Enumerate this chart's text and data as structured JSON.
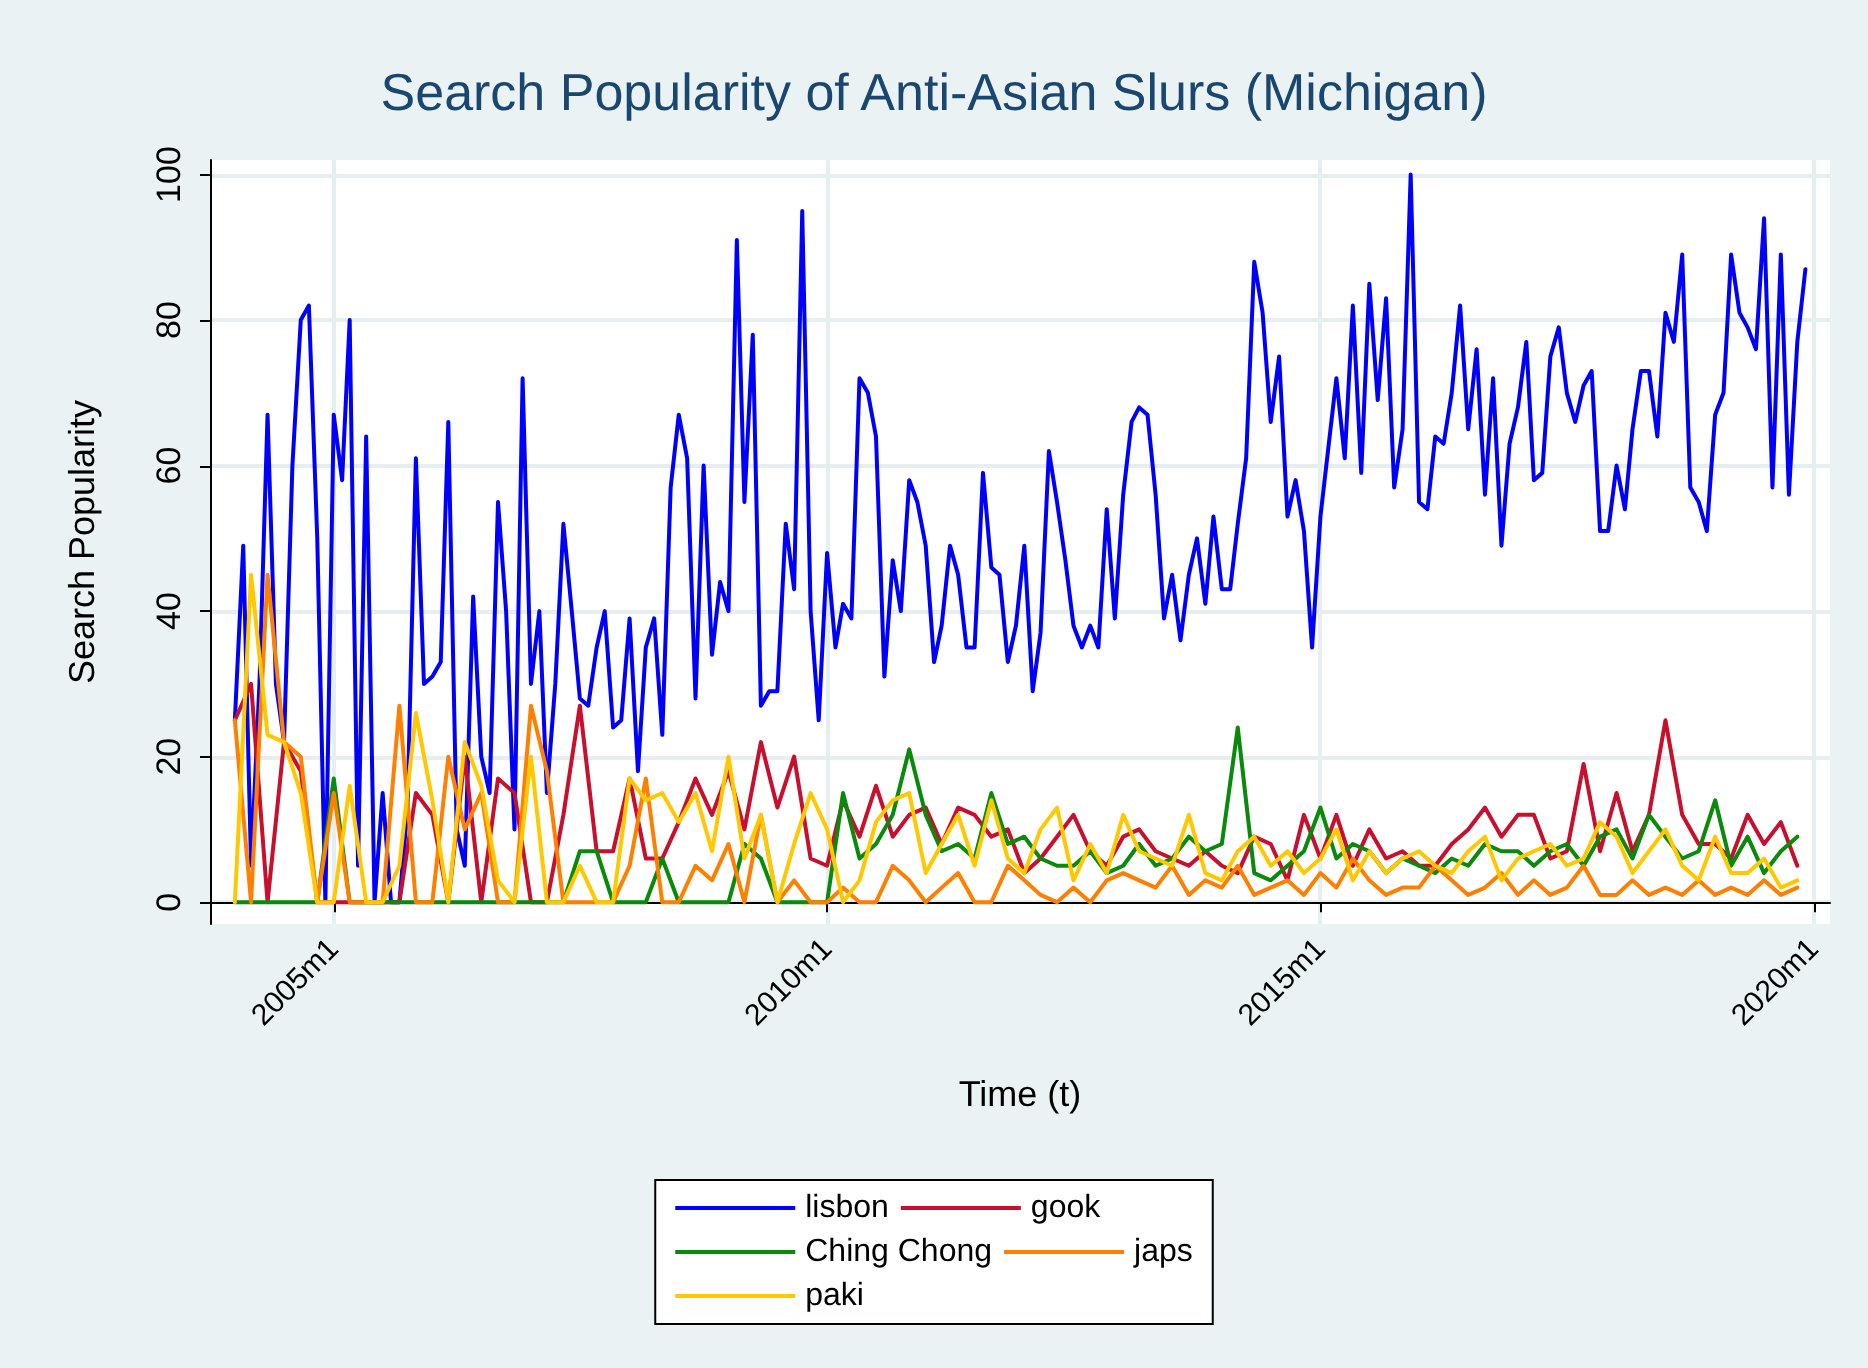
{
  "chart_data": {
    "type": "line",
    "title": "Search Popularity of Anti-Asian Slurs (Michigan)",
    "xlabel": "Time (t)",
    "ylabel": "Search Popularity",
    "xlim": [
      "2003-10",
      "2020-03"
    ],
    "xticks": [
      {
        "value": "2005-01",
        "label": "2005m1"
      },
      {
        "value": "2010-01",
        "label": "2010m1"
      },
      {
        "value": "2015-01",
        "label": "2015m1"
      },
      {
        "value": "2020-01",
        "label": "2020m1"
      }
    ],
    "ylim": [
      -3,
      102
    ],
    "yticks": [
      0,
      20,
      40,
      60,
      80,
      100
    ],
    "grid": true,
    "legend": "bottom",
    "marker": "none",
    "line_style": "solid",
    "x": [
      "2004-01",
      "2004-02",
      "2004-03",
      "2004-04",
      "2004-05",
      "2004-06",
      "2004-07",
      "2004-08",
      "2004-09",
      "2004-10",
      "2004-11",
      "2004-12",
      "2005-01",
      "2005-02",
      "2005-03",
      "2005-04",
      "2005-05",
      "2005-06",
      "2005-07",
      "2005-08",
      "2005-09",
      "2005-10",
      "2005-11",
      "2005-12",
      "2006-01",
      "2006-02",
      "2006-03",
      "2006-04",
      "2006-05",
      "2006-06",
      "2006-07",
      "2006-08",
      "2006-09",
      "2006-10",
      "2006-11",
      "2006-12",
      "2007-01",
      "2007-02",
      "2007-03",
      "2007-04",
      "2007-05",
      "2007-06",
      "2007-07",
      "2007-08",
      "2007-09",
      "2007-10",
      "2007-11",
      "2007-12",
      "2008-01",
      "2008-02",
      "2008-03",
      "2008-04",
      "2008-05",
      "2008-06",
      "2008-07",
      "2008-08",
      "2008-09",
      "2008-10",
      "2008-11",
      "2008-12",
      "2009-01",
      "2009-02",
      "2009-03",
      "2009-04",
      "2009-05",
      "2009-06",
      "2009-07",
      "2009-08",
      "2009-09",
      "2009-10",
      "2009-11",
      "2009-12",
      "2010-01",
      "2010-02",
      "2010-03",
      "2010-04",
      "2010-05",
      "2010-06",
      "2010-07",
      "2010-08",
      "2010-09",
      "2010-10",
      "2010-11",
      "2010-12",
      "2011-01",
      "2011-02",
      "2011-03",
      "2011-04",
      "2011-05",
      "2011-06",
      "2011-07",
      "2011-08",
      "2011-09",
      "2011-10",
      "2011-11",
      "2011-12",
      "2012-01",
      "2012-02",
      "2012-03",
      "2012-04",
      "2012-05",
      "2012-06",
      "2012-07",
      "2012-08",
      "2012-09",
      "2012-10",
      "2012-11",
      "2012-12",
      "2013-01",
      "2013-02",
      "2013-03",
      "2013-04",
      "2013-05",
      "2013-06",
      "2013-07",
      "2013-08",
      "2013-09",
      "2013-10",
      "2013-11",
      "2013-12",
      "2014-01",
      "2014-02",
      "2014-03",
      "2014-04",
      "2014-05",
      "2014-06",
      "2014-07",
      "2014-08",
      "2014-09",
      "2014-10",
      "2014-11",
      "2014-12",
      "2015-01",
      "2015-02",
      "2015-03",
      "2015-04",
      "2015-05",
      "2015-06",
      "2015-07",
      "2015-08",
      "2015-09",
      "2015-10",
      "2015-11",
      "2015-12",
      "2016-01",
      "2016-02",
      "2016-03",
      "2016-04",
      "2016-05",
      "2016-06",
      "2016-07",
      "2016-08",
      "2016-09",
      "2016-10",
      "2016-11",
      "2016-12",
      "2017-01",
      "2017-02",
      "2017-03",
      "2017-04",
      "2017-05",
      "2017-06",
      "2017-07",
      "2017-08",
      "2017-09",
      "2017-10",
      "2017-11",
      "2017-12",
      "2018-01",
      "2018-02",
      "2018-03",
      "2018-04",
      "2018-05",
      "2018-06",
      "2018-07",
      "2018-08",
      "2018-09",
      "2018-10",
      "2018-11",
      "2018-12",
      "2019-01",
      "2019-02",
      "2019-03",
      "2019-04",
      "2019-05",
      "2019-06",
      "2019-07",
      "2019-08",
      "2019-09",
      "2019-10",
      "2019-11",
      "2019-12"
    ],
    "series": [
      {
        "name": "lisbon",
        "color": "#0000ff",
        "values": [
          25,
          49,
          5,
          30,
          67,
          30,
          22,
          60,
          80,
          82,
          50,
          0,
          67,
          58,
          80,
          5,
          64,
          0,
          15,
          0,
          0,
          13,
          61,
          30,
          31,
          33,
          66,
          10,
          5,
          42,
          20,
          15,
          55,
          40,
          10,
          72,
          30,
          40,
          15,
          30,
          52,
          40,
          28,
          27,
          35,
          40,
          24,
          25,
          39,
          18,
          35,
          39,
          23,
          57,
          67,
          61,
          28,
          60,
          34,
          44,
          40,
          91,
          55,
          78,
          27,
          29,
          29,
          52,
          43,
          95,
          40,
          25,
          48,
          35,
          41,
          39,
          72,
          70,
          64,
          31,
          47,
          40,
          58,
          55,
          49,
          33,
          38,
          49,
          45,
          35,
          35,
          59,
          46,
          45,
          33,
          38,
          49,
          29,
          37,
          62,
          55,
          47,
          38,
          35,
          38,
          35,
          54,
          39,
          56,
          66,
          68,
          67,
          56,
          39,
          45,
          36,
          45,
          50,
          41,
          53,
          43,
          43,
          52,
          61,
          88,
          81,
          66,
          75,
          53,
          58,
          51,
          35,
          53,
          63,
          72,
          61,
          82,
          59,
          85,
          69,
          83,
          57,
          65,
          100,
          55,
          54,
          64,
          63,
          70,
          82,
          65,
          76,
          56,
          72,
          49,
          63,
          68,
          77,
          58,
          59,
          75,
          79,
          70,
          66,
          71,
          73,
          51,
          51,
          60,
          54,
          65,
          73,
          73,
          64,
          81,
          77,
          89,
          57,
          55,
          51,
          67,
          70,
          89,
          81,
          79,
          76,
          94,
          57,
          89,
          56,
          77,
          87
        ]
      },
      {
        "name": "gook",
        "color": "#c8102e",
        "x": [
          "2004-01",
          "2004-03",
          "2004-05",
          "2004-07",
          "2004-09",
          "2004-11",
          "2005-01",
          "2005-03",
          "2005-05",
          "2005-07",
          "2005-09",
          "2005-11",
          "2006-01",
          "2006-03",
          "2006-05",
          "2006-07",
          "2006-09",
          "2006-11",
          "2007-01",
          "2007-03",
          "2007-05",
          "2007-07",
          "2007-09",
          "2007-11",
          "2008-01",
          "2008-03",
          "2008-05",
          "2008-07",
          "2008-09",
          "2008-11",
          "2009-01",
          "2009-03",
          "2009-05",
          "2009-07",
          "2009-09",
          "2009-11",
          "2010-01",
          "2010-03",
          "2010-05",
          "2010-07",
          "2010-09",
          "2010-11",
          "2011-01",
          "2011-03",
          "2011-05",
          "2011-07",
          "2011-09",
          "2011-11",
          "2012-01",
          "2012-03",
          "2012-05",
          "2012-07",
          "2012-09",
          "2012-11",
          "2013-01",
          "2013-03",
          "2013-05",
          "2013-07",
          "2013-09",
          "2013-11",
          "2014-01",
          "2014-03",
          "2014-05",
          "2014-07",
          "2014-09",
          "2014-11",
          "2015-01",
          "2015-03",
          "2015-05",
          "2015-07",
          "2015-09",
          "2015-11",
          "2016-01",
          "2016-03",
          "2016-05",
          "2016-07",
          "2016-09",
          "2016-11",
          "2017-01",
          "2017-03",
          "2017-05",
          "2017-07",
          "2017-09",
          "2017-11",
          "2018-01",
          "2018-03",
          "2018-05",
          "2018-07",
          "2018-09",
          "2018-11",
          "2019-01",
          "2019-03",
          "2019-05",
          "2019-07",
          "2019-09",
          "2019-11"
        ],
        "values": [
          25,
          30,
          0,
          22,
          18,
          0,
          0,
          0,
          0,
          0,
          0,
          15,
          12,
          0,
          20,
          0,
          17,
          15,
          0,
          0,
          12,
          27,
          7,
          7,
          17,
          6,
          6,
          11,
          17,
          12,
          18,
          10,
          22,
          13,
          20,
          6,
          5,
          14,
          9,
          16,
          9,
          12,
          13,
          8,
          13,
          12,
          9,
          10,
          4,
          6,
          9,
          12,
          7,
          5,
          9,
          10,
          7,
          6,
          5,
          7,
          5,
          4,
          9,
          8,
          3,
          12,
          6,
          12,
          5,
          10,
          6,
          7,
          5,
          5,
          8,
          10,
          13,
          9,
          12,
          12,
          6,
          7,
          19,
          7,
          15,
          7,
          12,
          25,
          12,
          8,
          8,
          6,
          12,
          8,
          11,
          5
        ]
      },
      {
        "name": "Ching Chong",
        "color": "#0a8a0a",
        "x": [
          "2004-01",
          "2004-03",
          "2004-05",
          "2004-07",
          "2004-09",
          "2004-11",
          "2005-01",
          "2005-03",
          "2005-05",
          "2005-07",
          "2005-09",
          "2005-11",
          "2006-01",
          "2006-03",
          "2006-05",
          "2006-07",
          "2006-09",
          "2006-11",
          "2007-01",
          "2007-03",
          "2007-05",
          "2007-07",
          "2007-09",
          "2007-11",
          "2008-01",
          "2008-03",
          "2008-05",
          "2008-07",
          "2008-09",
          "2008-11",
          "2009-01",
          "2009-03",
          "2009-05",
          "2009-07",
          "2009-09",
          "2009-11",
          "2010-01",
          "2010-03",
          "2010-05",
          "2010-07",
          "2010-09",
          "2010-11",
          "2011-01",
          "2011-03",
          "2011-05",
          "2011-07",
          "2011-09",
          "2011-11",
          "2012-01",
          "2012-03",
          "2012-05",
          "2012-07",
          "2012-09",
          "2012-11",
          "2013-01",
          "2013-03",
          "2013-05",
          "2013-07",
          "2013-09",
          "2013-11",
          "2014-01",
          "2014-03",
          "2014-05",
          "2014-07",
          "2014-09",
          "2014-11",
          "2015-01",
          "2015-03",
          "2015-05",
          "2015-07",
          "2015-09",
          "2015-11",
          "2016-01",
          "2016-03",
          "2016-05",
          "2016-07",
          "2016-09",
          "2016-11",
          "2017-01",
          "2017-03",
          "2017-05",
          "2017-07",
          "2017-09",
          "2017-11",
          "2018-01",
          "2018-03",
          "2018-05",
          "2018-07",
          "2018-09",
          "2018-11",
          "2019-01",
          "2019-03",
          "2019-05",
          "2019-07",
          "2019-09",
          "2019-11"
        ],
        "values": [
          0,
          0,
          0,
          0,
          0,
          0,
          17,
          0,
          0,
          0,
          0,
          0,
          0,
          0,
          0,
          0,
          0,
          0,
          0,
          0,
          0,
          7,
          7,
          0,
          0,
          0,
          6,
          0,
          0,
          0,
          0,
          8,
          6,
          0,
          0,
          0,
          0,
          15,
          6,
          8,
          12,
          21,
          12,
          7,
          8,
          6,
          15,
          8,
          9,
          6,
          5,
          5,
          7,
          4,
          5,
          8,
          5,
          6,
          9,
          7,
          8,
          24,
          4,
          3,
          5,
          7,
          13,
          6,
          8,
          7,
          4,
          6,
          5,
          4,
          6,
          5,
          8,
          7,
          7,
          5,
          7,
          8,
          5,
          9,
          10,
          6,
          12,
          9,
          6,
          7,
          14,
          5,
          9,
          4,
          7,
          9
        ]
      },
      {
        "name": "japs",
        "color": "#ff8000",
        "x": [
          "2004-01",
          "2004-03",
          "2004-05",
          "2004-07",
          "2004-09",
          "2004-11",
          "2005-01",
          "2005-03",
          "2005-05",
          "2005-07",
          "2005-09",
          "2005-11",
          "2006-01",
          "2006-03",
          "2006-05",
          "2006-07",
          "2006-09",
          "2006-11",
          "2007-01",
          "2007-03",
          "2007-05",
          "2007-07",
          "2007-09",
          "2007-11",
          "2008-01",
          "2008-03",
          "2008-05",
          "2008-07",
          "2008-09",
          "2008-11",
          "2009-01",
          "2009-03",
          "2009-05",
          "2009-07",
          "2009-09",
          "2009-11",
          "2010-01",
          "2010-03",
          "2010-05",
          "2010-07",
          "2010-09",
          "2010-11",
          "2011-01",
          "2011-03",
          "2011-05",
          "2011-07",
          "2011-09",
          "2011-11",
          "2012-01",
          "2012-03",
          "2012-05",
          "2012-07",
          "2012-09",
          "2012-11",
          "2013-01",
          "2013-03",
          "2013-05",
          "2013-07",
          "2013-09",
          "2013-11",
          "2014-01",
          "2014-03",
          "2014-05",
          "2014-07",
          "2014-09",
          "2014-11",
          "2015-01",
          "2015-03",
          "2015-05",
          "2015-07",
          "2015-09",
          "2015-11",
          "2016-01",
          "2016-03",
          "2016-05",
          "2016-07",
          "2016-09",
          "2016-11",
          "2017-01",
          "2017-03",
          "2017-05",
          "2017-07",
          "2017-09",
          "2017-11",
          "2018-01",
          "2018-03",
          "2018-05",
          "2018-07",
          "2018-09",
          "2018-11",
          "2019-01",
          "2019-03",
          "2019-05",
          "2019-07",
          "2019-09",
          "2019-11"
        ],
        "values": [
          25,
          0,
          45,
          22,
          20,
          0,
          15,
          0,
          0,
          0,
          27,
          0,
          0,
          20,
          10,
          15,
          0,
          0,
          27,
          18,
          0,
          0,
          0,
          0,
          5,
          17,
          0,
          0,
          5,
          3,
          8,
          0,
          12,
          0,
          3,
          0,
          0,
          2,
          0,
          0,
          5,
          3,
          0,
          2,
          4,
          0,
          0,
          5,
          3,
          1,
          0,
          2,
          0,
          3,
          4,
          3,
          2,
          5,
          1,
          3,
          2,
          5,
          1,
          2,
          3,
          1,
          4,
          2,
          6,
          3,
          1,
          2,
          2,
          5,
          3,
          1,
          2,
          4,
          1,
          3,
          1,
          2,
          5,
          1,
          1,
          3,
          1,
          2,
          1,
          3,
          1,
          2,
          1,
          3,
          1,
          2
        ]
      },
      {
        "name": "paki",
        "color": "#ffc800",
        "x": [
          "2004-01",
          "2004-03",
          "2004-05",
          "2004-07",
          "2004-09",
          "2004-11",
          "2005-01",
          "2005-03",
          "2005-05",
          "2005-07",
          "2005-09",
          "2005-11",
          "2006-01",
          "2006-03",
          "2006-05",
          "2006-07",
          "2006-09",
          "2006-11",
          "2007-01",
          "2007-03",
          "2007-05",
          "2007-07",
          "2007-09",
          "2007-11",
          "2008-01",
          "2008-03",
          "2008-05",
          "2008-07",
          "2008-09",
          "2008-11",
          "2009-01",
          "2009-03",
          "2009-05",
          "2009-07",
          "2009-09",
          "2009-11",
          "2010-01",
          "2010-03",
          "2010-05",
          "2010-07",
          "2010-09",
          "2010-11",
          "2011-01",
          "2011-03",
          "2011-05",
          "2011-07",
          "2011-09",
          "2011-11",
          "2012-01",
          "2012-03",
          "2012-05",
          "2012-07",
          "2012-09",
          "2012-11",
          "2013-01",
          "2013-03",
          "2013-05",
          "2013-07",
          "2013-09",
          "2013-11",
          "2014-01",
          "2014-03",
          "2014-05",
          "2014-07",
          "2014-09",
          "2014-11",
          "2015-01",
          "2015-03",
          "2015-05",
          "2015-07",
          "2015-09",
          "2015-11",
          "2016-01",
          "2016-03",
          "2016-05",
          "2016-07",
          "2016-09",
          "2016-11",
          "2017-01",
          "2017-03",
          "2017-05",
          "2017-07",
          "2017-09",
          "2017-11",
          "2018-01",
          "2018-03",
          "2018-05",
          "2018-07",
          "2018-09",
          "2018-11",
          "2019-01",
          "2019-03",
          "2019-05",
          "2019-07",
          "2019-09",
          "2019-11"
        ],
        "values": [
          0,
          45,
          23,
          22,
          15,
          0,
          0,
          16,
          0,
          0,
          5,
          26,
          14,
          0,
          22,
          16,
          3,
          0,
          20,
          0,
          0,
          5,
          0,
          0,
          17,
          14,
          15,
          11,
          15,
          7,
          20,
          6,
          12,
          0,
          8,
          15,
          10,
          0,
          3,
          11,
          14,
          15,
          4,
          8,
          12,
          5,
          14,
          6,
          4,
          10,
          13,
          3,
          8,
          4,
          12,
          7,
          6,
          5,
          12,
          4,
          3,
          7,
          9,
          5,
          7,
          4,
          6,
          10,
          3,
          7,
          4,
          6,
          7,
          5,
          4,
          7,
          9,
          3,
          6,
          7,
          8,
          5,
          6,
          11,
          9,
          4,
          7,
          10,
          5,
          3,
          9,
          4,
          4,
          6,
          2,
          3
        ]
      }
    ]
  }
}
